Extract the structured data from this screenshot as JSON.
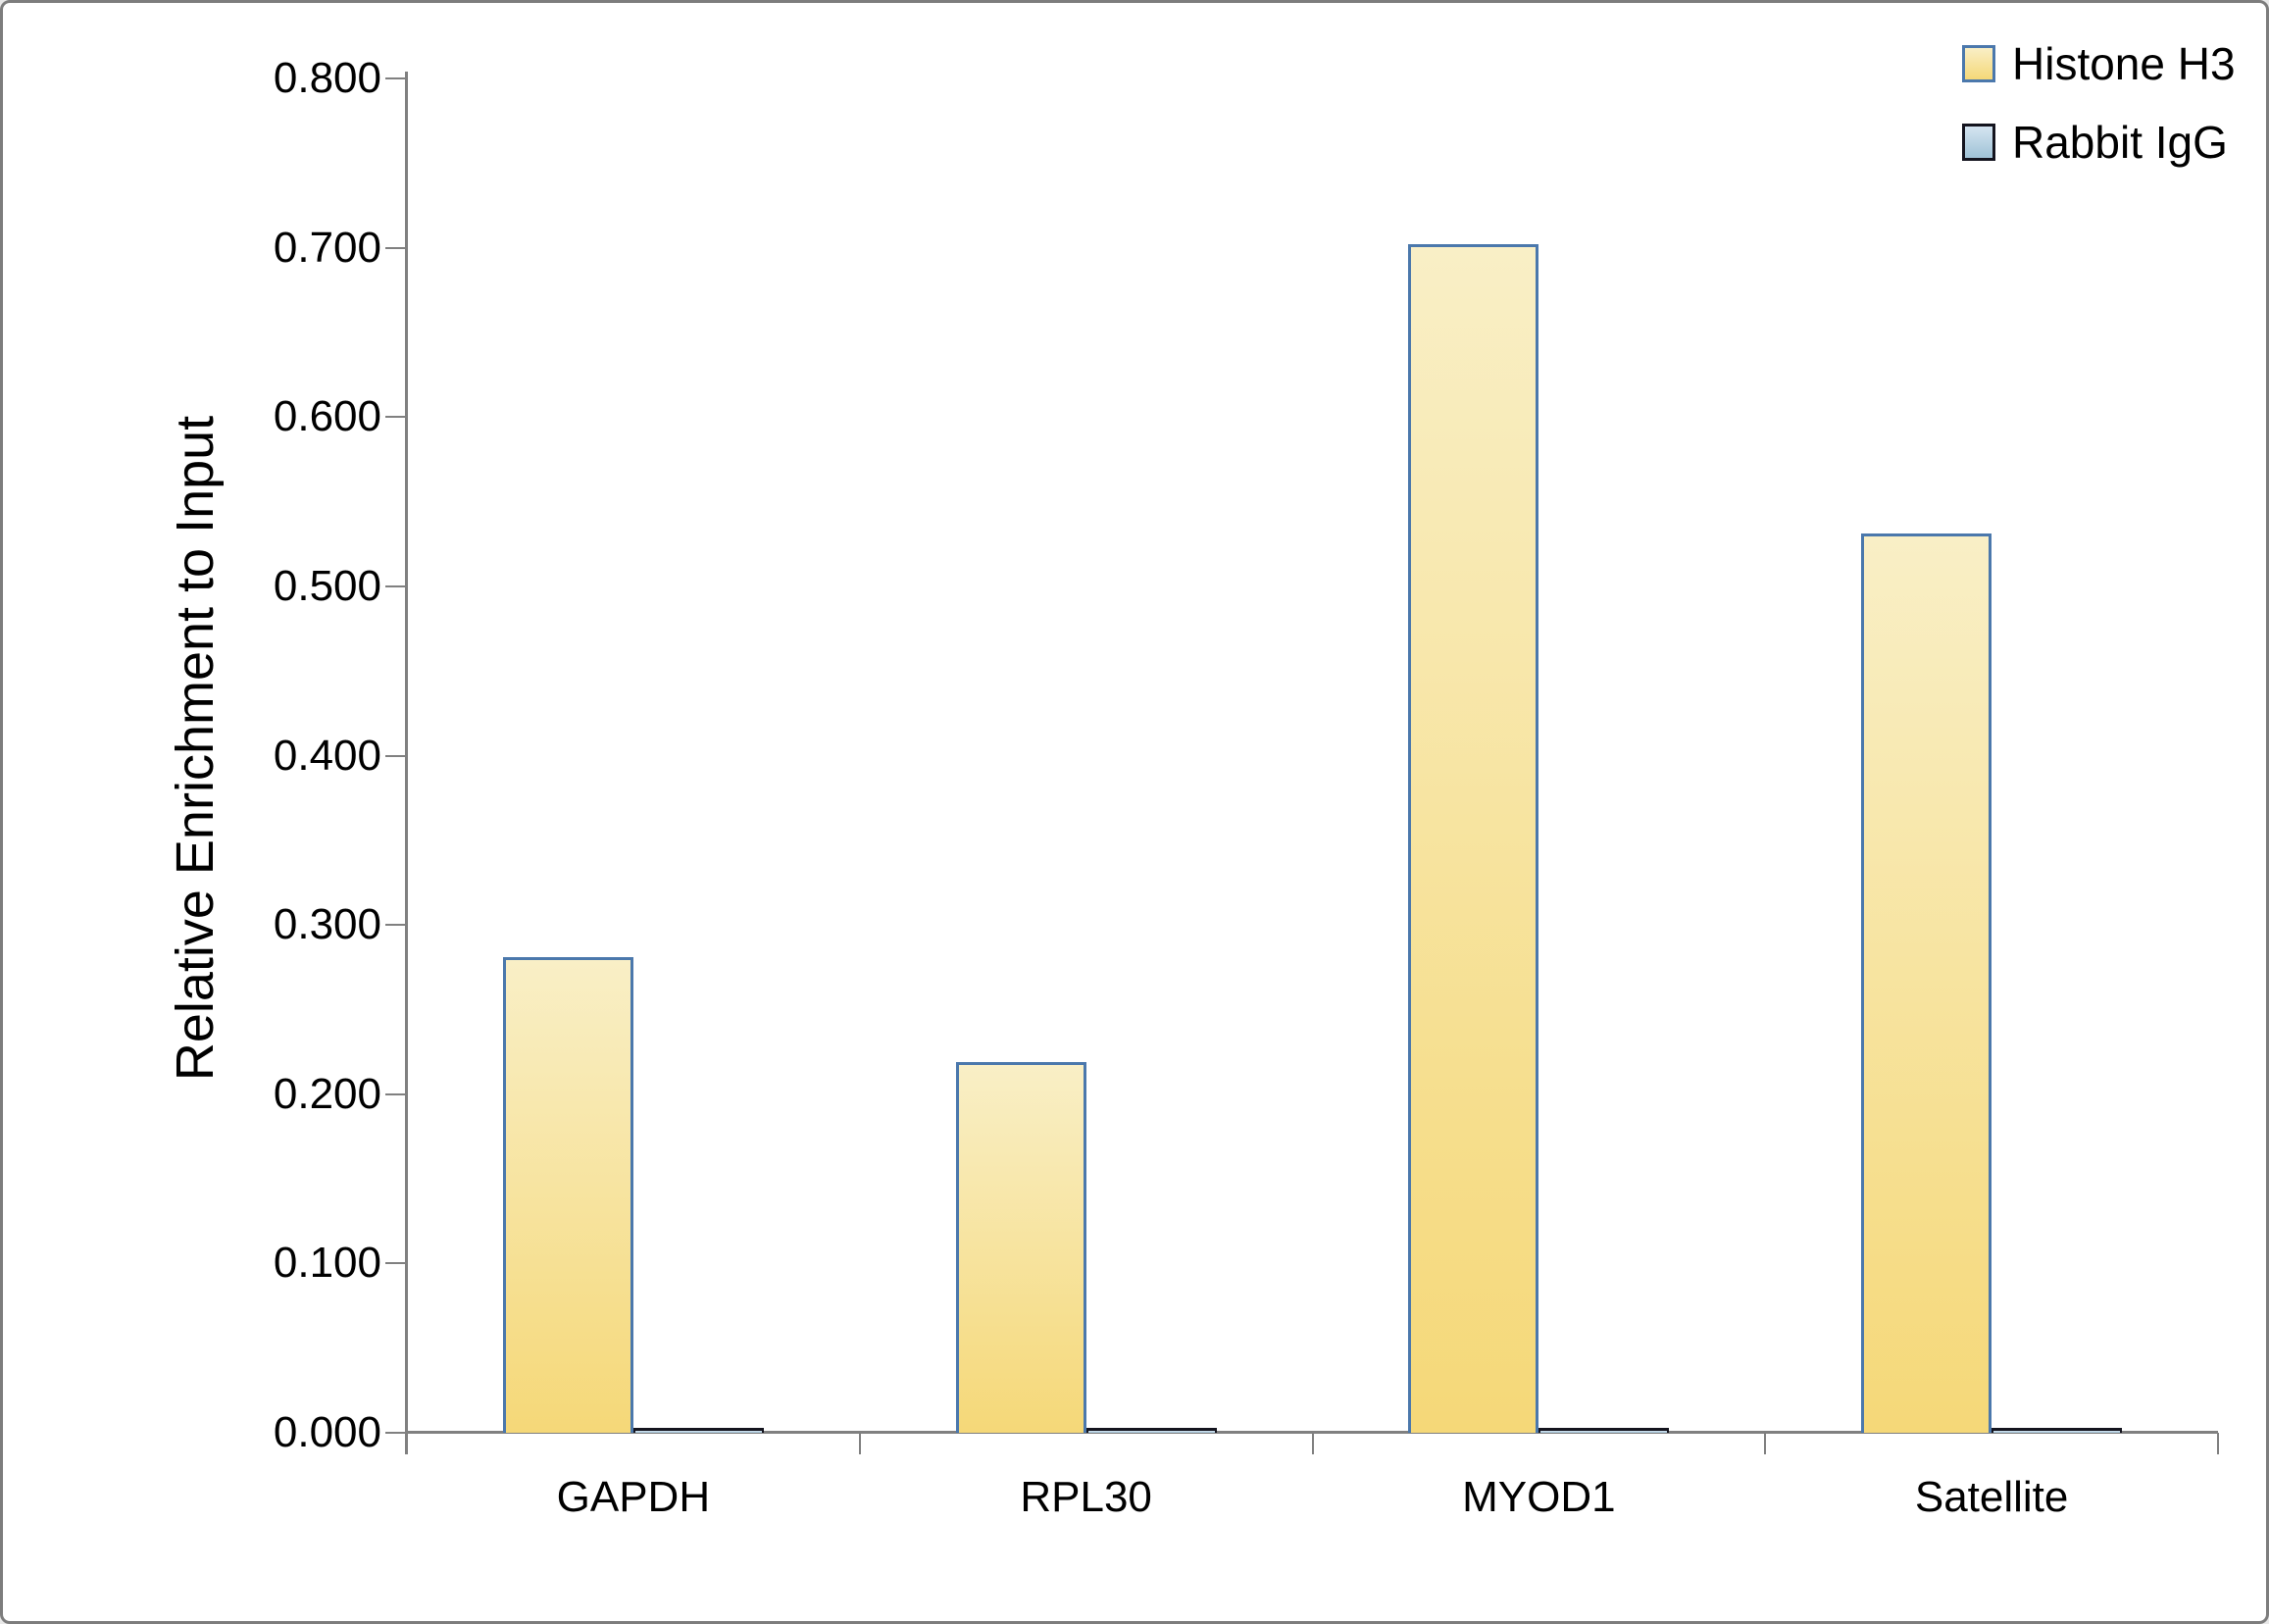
{
  "chart_data": {
    "type": "bar",
    "title": "",
    "categories": [
      "GAPDH",
      "RPL30",
      "MYOD1",
      "Satellite"
    ],
    "series": [
      {
        "name": "Histone H3",
        "values": [
          0.281,
          0.219,
          0.702,
          0.531
        ],
        "fill_top": "#f9efc6",
        "fill_bottom": "#f5d878",
        "border": "#4b78ac"
      },
      {
        "name": "Rabbit IgG",
        "values": [
          0.003,
          0.003,
          0.003,
          0.003
        ],
        "fill_top": "#d5e5f1",
        "fill_bottom": "#9fc2d6",
        "border": "#14141e"
      }
    ],
    "xlabel": "",
    "ylabel": "Relative Enrichment to Input",
    "ylim": [
      0,
      0.8
    ],
    "ytick_labels": [
      "0.000",
      "0.100",
      "0.200",
      "0.300",
      "0.400",
      "0.500",
      "0.600",
      "0.700",
      "0.800"
    ],
    "grid": false,
    "legend_position": "top-right"
  },
  "colors": {
    "axis": "#808080",
    "text": "#000000",
    "frame": "#7d7d7d",
    "background": "#ffffff"
  }
}
